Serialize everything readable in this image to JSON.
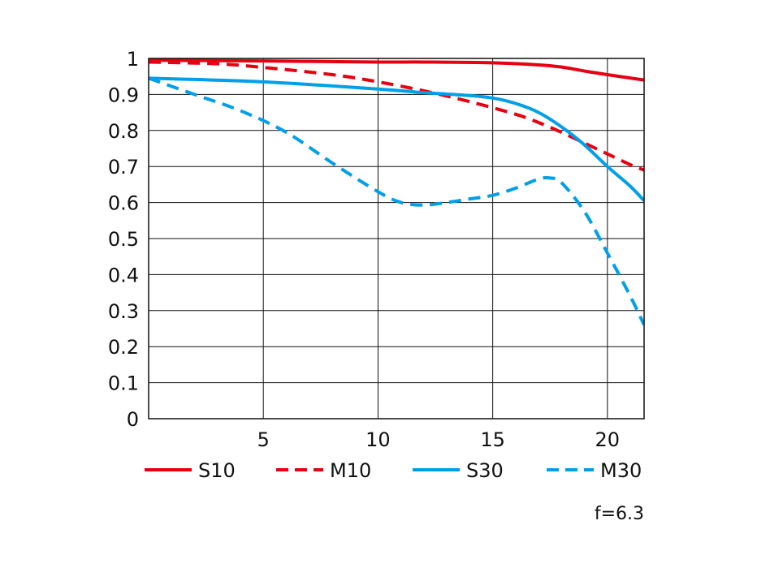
{
  "chart_data": {
    "type": "line",
    "title": "",
    "xlabel": "",
    "ylabel": "",
    "xlim": [
      0,
      21.6
    ],
    "ylim": [
      0,
      1
    ],
    "grid": true,
    "legend_position": "bottom",
    "x_ticks": [
      {
        "value": 5,
        "label": "5"
      },
      {
        "value": 10,
        "label": "10"
      },
      {
        "value": 15,
        "label": "15"
      },
      {
        "value": 20,
        "label": "20"
      }
    ],
    "y_ticks": [
      {
        "value": 0,
        "label": "0"
      },
      {
        "value": 0.1,
        "label": "0.1"
      },
      {
        "value": 0.2,
        "label": "0.2"
      },
      {
        "value": 0.3,
        "label": "0.3"
      },
      {
        "value": 0.4,
        "label": "0.4"
      },
      {
        "value": 0.5,
        "label": "0.5"
      },
      {
        "value": 0.6,
        "label": "0.6"
      },
      {
        "value": 0.7,
        "label": "0.7"
      },
      {
        "value": 0.8,
        "label": "0.8"
      },
      {
        "value": 0.9,
        "label": "0.9"
      },
      {
        "value": 1,
        "label": "1"
      }
    ],
    "series": [
      {
        "name": "S10",
        "color": "#e60012",
        "style": "solid",
        "x": [
          0,
          5,
          10,
          12,
          15,
          17,
          18,
          19,
          20,
          21.6
        ],
        "y": [
          0.995,
          0.993,
          0.99,
          0.99,
          0.988,
          0.982,
          0.976,
          0.965,
          0.955,
          0.94
        ]
      },
      {
        "name": "M10",
        "color": "#e60012",
        "style": "dashed",
        "x": [
          0,
          3,
          5,
          8,
          10,
          12,
          14,
          16,
          17,
          18,
          19,
          20,
          21,
          21.6
        ],
        "y": [
          0.99,
          0.985,
          0.975,
          0.955,
          0.935,
          0.91,
          0.88,
          0.845,
          0.822,
          0.795,
          0.765,
          0.735,
          0.705,
          0.69
        ]
      },
      {
        "name": "S30",
        "color": "#00a0e9",
        "style": "solid",
        "x": [
          0,
          5,
          10,
          12,
          14,
          15,
          16,
          17,
          18,
          19,
          20,
          21,
          21.6
        ],
        "y": [
          0.945,
          0.935,
          0.915,
          0.905,
          0.897,
          0.89,
          0.875,
          0.85,
          0.81,
          0.76,
          0.7,
          0.645,
          0.605
        ]
      },
      {
        "name": "M30",
        "color": "#00a0e9",
        "style": "dashed",
        "x": [
          0,
          2,
          4,
          6,
          8,
          10,
          11,
          12,
          13,
          14,
          15,
          16,
          17,
          17.5,
          18,
          19,
          20,
          21,
          21.6
        ],
        "y": [
          0.945,
          0.9,
          0.855,
          0.795,
          0.71,
          0.63,
          0.6,
          0.593,
          0.6,
          0.61,
          0.62,
          0.64,
          0.665,
          0.668,
          0.655,
          0.575,
          0.46,
          0.34,
          0.26
        ]
      }
    ],
    "annotation": "f=6.3"
  }
}
